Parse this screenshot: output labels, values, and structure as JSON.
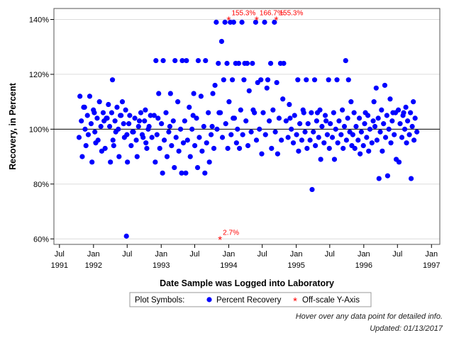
{
  "chart_data": {
    "type": "scatter",
    "xlabel": "Date Sample was Logged into Laboratory",
    "ylabel": "Recovery, in Percent",
    "xlim": [
      "1991-06-01",
      "1997-02-15"
    ],
    "ylim": [
      58,
      144
    ],
    "reference_line_y": 100,
    "y_ticks": [
      {
        "value": 60,
        "label": "60%"
      },
      {
        "value": 80,
        "label": "80%"
      },
      {
        "value": 100,
        "label": "100%"
      },
      {
        "value": 120,
        "label": "120%"
      },
      {
        "value": 140,
        "label": "140%"
      }
    ],
    "x_ticks": [
      {
        "date": "1991-07-01",
        "label": "Jul",
        "year": ""
      },
      {
        "date": "1992-01-01",
        "label": "Jan",
        "year": "1992"
      },
      {
        "date": "1992-07-01",
        "label": "Jul",
        "year": ""
      },
      {
        "date": "1993-01-01",
        "label": "Jan",
        "year": "1993"
      },
      {
        "date": "1993-07-01",
        "label": "Jul",
        "year": ""
      },
      {
        "date": "1994-01-01",
        "label": "Jan",
        "year": "1994"
      },
      {
        "date": "1994-07-01",
        "label": "Jul",
        "year": ""
      },
      {
        "date": "1995-01-01",
        "label": "Jan",
        "year": "1995"
      },
      {
        "date": "1995-07-01",
        "label": "Jul",
        "year": ""
      },
      {
        "date": "1996-01-01",
        "label": "Jan",
        "year": "1996"
      },
      {
        "date": "1996-07-01",
        "label": "Jul",
        "year": ""
      },
      {
        "date": "1997-01-01",
        "label": "Jan",
        "year": "1997"
      }
    ],
    "corner_year_label": "1991",
    "grid": "horizontal",
    "legend": {
      "placement": "bottom",
      "title": "Plot Symbols:",
      "entries": [
        {
          "label": "Percent Recovery",
          "marker": "circle",
          "color": "#0000ff"
        },
        {
          "label": "Off-scale Y-Axis",
          "marker": "asterisk",
          "color": "#ff0000"
        }
      ]
    },
    "series": [
      {
        "name": "Percent Recovery",
        "marker": "circle",
        "color": "#0000ff",
        "clusters": [
          {
            "date_start": "1991-10-15",
            "date_end": "1992-03-01",
            "points": [
              97,
              99,
              100,
              101,
              102,
              103,
              104,
              105,
              106,
              107,
              108,
              110,
              112,
              112,
              95,
              94,
              92,
              88,
              90,
              96,
              98,
              103,
              106,
              108
            ]
          },
          {
            "date_start": "1992-03-01",
            "date_end": "1992-07-01",
            "points": [
              96,
              98,
              100,
              101,
              102,
              103,
              104,
              105,
              106,
              107,
              108,
              109,
              110,
              94,
              93,
              90,
              88,
              97,
              99,
              104,
              105,
              118,
              61
            ]
          },
          {
            "date_start": "1992-07-01",
            "date_end": "1992-11-15",
            "points": [
              95,
              96,
              97,
              98,
              99,
              100,
              101,
              102,
              103,
              104,
              105,
              106,
              94,
              93,
              90,
              88,
              97,
              99,
              101,
              103,
              105,
              107
            ]
          },
          {
            "date_start": "1992-11-15",
            "date_end": "1993-05-01",
            "points": [
              125,
              125,
              125,
              125,
              113,
              113,
              110,
              106,
              105,
              103,
              102,
              100,
              99,
              98,
              97,
              96,
              95,
              94,
              93,
              92,
              90,
              88,
              86,
              84,
              84,
              101,
              104
            ]
          },
          {
            "date_start": "1993-05-01",
            "date_end": "1993-10-15",
            "points": [
              125,
              125,
              125,
              113,
              113,
              112,
              108,
              106,
              104,
              103,
              101,
              100,
              98,
              97,
              96,
              95,
              94,
              93,
              92,
              90,
              88,
              86,
              84,
              84,
              105,
              101
            ]
          },
          {
            "date_start": "1993-10-15",
            "date_end": "1994-02-15",
            "points": [
              139,
              139,
              139,
              139,
              132,
              124,
              124,
              124,
              118,
              118,
              116,
              110,
              106,
              104,
              102,
              100,
              98,
              97,
              95,
              93,
              106,
              104
            ]
          },
          {
            "date_start": "1994-02-15",
            "date_end": "1994-06-15",
            "points": [
              139,
              139,
              124,
              124,
              124,
              118,
              117,
              114,
              107,
              106,
              103,
              100,
              99,
              98,
              96,
              94,
              93,
              107,
              124
            ]
          },
          {
            "date_start": "1994-06-15",
            "date_end": "1994-11-01",
            "points": [
              139,
              139,
              124,
              124,
              118,
              117,
              115,
              111,
              107,
              106,
              104,
              103,
              100,
              99,
              98,
              96,
              93,
              91,
              91,
              118,
              124
            ]
          },
          {
            "date_start": "1994-11-01",
            "date_end": "1995-03-01",
            "points": [
              118,
              118,
              109,
              107,
              105,
              103,
              102,
              100,
              99,
              98,
              97,
              96,
              95,
              93,
              92,
              104,
              106
            ]
          },
          {
            "date_start": "1995-03-01",
            "date_end": "1995-07-01",
            "points": [
              118,
              118,
              107,
              106,
              105,
              103,
              102,
              101,
              99,
              98,
              97,
              96,
              95,
              94,
              93,
              89,
              78,
              103,
              106
            ]
          },
          {
            "date_start": "1995-07-01",
            "date_end": "1995-11-01",
            "points": [
              125,
              118,
              110,
              107,
              106,
              104,
              103,
              102,
              101,
              100,
              99,
              98,
              97,
              96,
              95,
              94,
              93,
              89,
              118
            ]
          },
          {
            "date_start": "1995-11-01",
            "date_end": "1996-03-01",
            "points": [
              106,
              105,
              104,
              103,
              102,
              101,
              100,
              99,
              98,
              97,
              96,
              95,
              94,
              93,
              92,
              91,
              110,
              106
            ]
          },
          {
            "date_start": "1996-03-01",
            "date_end": "1996-07-01",
            "points": [
              116,
              115,
              111,
              107,
              106,
              105,
              104,
              103,
              102,
              101,
              100,
              99,
              98,
              97,
              96,
              95,
              92,
              89,
              83,
              82,
              106
            ]
          },
          {
            "date_start": "1996-07-01",
            "date_end": "1996-10-15",
            "points": [
              110,
              108,
              107,
              106,
              105,
              104,
              103,
              102,
              101,
              100,
              99,
              98,
              97,
              96,
              95,
              88,
              82,
              106
            ]
          }
        ]
      },
      {
        "name": "Off-scale Y-Axis",
        "marker": "asterisk",
        "color": "#ff0000",
        "points": [
          {
            "date": "1993-11-15",
            "y": 60,
            "label": "2.7%"
          },
          {
            "date": "1994-01-01",
            "y": 140,
            "label": "155.3%"
          },
          {
            "date": "1994-06-01",
            "y": 140,
            "label": "166.7%"
          },
          {
            "date": "1994-09-15",
            "y": 140,
            "label": "155.3%"
          }
        ]
      }
    ],
    "footnotes": [
      "Hover over any data point for detailed info.",
      "Updated: 01/13/2017"
    ]
  }
}
